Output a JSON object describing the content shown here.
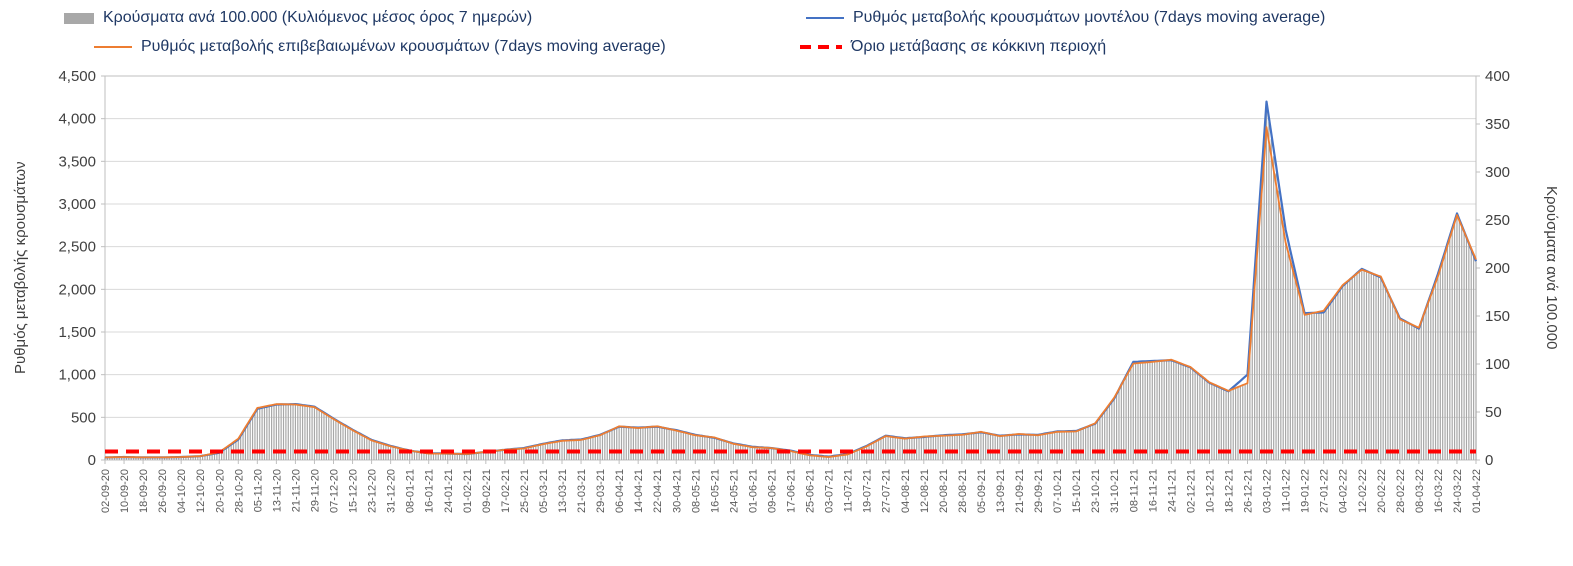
{
  "chart_data": {
    "type": "combo-bar-line",
    "title": "",
    "legend_position": "top",
    "grid": true,
    "x_tick_interval_days": 8,
    "x": [
      "02-09-20",
      "10-09-20",
      "18-09-20",
      "26-09-20",
      "04-10-20",
      "12-10-20",
      "20-10-20",
      "28-10-20",
      "05-11-20",
      "13-11-20",
      "21-11-20",
      "29-11-20",
      "07-12-20",
      "15-12-20",
      "23-12-20",
      "31-12-20",
      "08-01-21",
      "16-01-21",
      "24-01-21",
      "01-02-21",
      "09-02-21",
      "17-02-21",
      "25-02-21",
      "05-03-21",
      "13-03-21",
      "21-03-21",
      "29-03-21",
      "06-04-21",
      "14-04-21",
      "22-04-21",
      "30-04-21",
      "08-05-21",
      "16-05-21",
      "24-05-21",
      "01-06-21",
      "09-06-21",
      "17-06-21",
      "25-06-21",
      "03-07-21",
      "11-07-21",
      "19-07-21",
      "27-07-21",
      "04-08-21",
      "12-08-21",
      "20-08-21",
      "28-08-21",
      "05-09-21",
      "13-09-21",
      "21-09-21",
      "29-09-21",
      "07-10-21",
      "15-10-21",
      "23-10-21",
      "31-10-21",
      "08-11-21",
      "16-11-21",
      "24-11-21",
      "02-12-21",
      "10-12-21",
      "18-12-21",
      "26-12-21",
      "03-01-22",
      "11-01-22",
      "19-01-22",
      "27-01-22",
      "04-02-22",
      "12-02-22",
      "20-02-22",
      "28-02-22",
      "08-03-22",
      "16-03-22",
      "24-03-22",
      "01-04-22"
    ],
    "series": [
      {
        "name": "Κρούσματα ανά 100.000 (Κυλιόμενος μέσος όρος 7 ημερών)",
        "type": "bar",
        "axis": "right",
        "color": "#a8a8a8",
        "values": [
          3,
          3,
          3,
          3,
          3,
          4,
          8,
          22,
          54,
          58,
          58,
          55,
          43,
          31,
          20,
          14,
          10,
          7,
          7,
          6,
          8,
          11,
          12,
          16,
          20,
          21,
          26,
          35,
          33,
          35,
          31,
          26,
          24,
          17,
          13,
          12,
          9,
          5,
          3,
          6,
          14,
          25,
          22,
          24,
          25,
          26,
          29,
          25,
          27,
          26,
          29,
          30,
          38,
          65,
          100,
          102,
          104,
          97,
          81,
          72,
          80,
          370,
          227,
          151,
          156,
          182,
          198,
          191,
          147,
          138,
          191,
          255,
          209
        ]
      },
      {
        "name": "Ρυθμός μεταβολής κρουσμάτων μοντέλου (7days moving average)",
        "type": "line",
        "axis": "left",
        "color": "#4472C4",
        "values": [
          30,
          35,
          30,
          30,
          35,
          45,
          85,
          240,
          600,
          650,
          655,
          625,
          485,
          355,
          235,
          165,
          110,
          80,
          75,
          70,
          95,
          120,
          140,
          190,
          230,
          240,
          295,
          390,
          380,
          390,
          350,
          295,
          260,
          195,
          155,
          140,
          110,
          60,
          40,
          70,
          165,
          285,
          255,
          270,
          290,
          300,
          325,
          285,
          300,
          295,
          335,
          340,
          425,
          720,
          1150,
          1160,
          1170,
          1085,
          905,
          805,
          1000,
          4200,
          2700,
          1720,
          1730,
          2040,
          2240,
          2140,
          1660,
          1540,
          2180,
          2890,
          2330
        ]
      },
      {
        "name": "Ρυθμός μεταβολής επιβεβαιωμένων κρουσμάτων (7days moving average)",
        "type": "line",
        "axis": "left",
        "color": "#ED7D31",
        "values": [
          30,
          35,
          30,
          30,
          35,
          45,
          90,
          250,
          610,
          655,
          650,
          620,
          480,
          350,
          230,
          160,
          110,
          75,
          75,
          70,
          95,
          120,
          135,
          185,
          225,
          235,
          290,
          395,
          375,
          395,
          345,
          290,
          265,
          190,
          150,
          140,
          105,
          55,
          35,
          65,
          160,
          280,
          250,
          275,
          285,
          295,
          330,
          280,
          305,
          290,
          330,
          335,
          430,
          730,
          1130,
          1150,
          1175,
          1090,
          910,
          810,
          900,
          3900,
          2550,
          1700,
          1750,
          2050,
          2230,
          2150,
          1650,
          1550,
          2150,
          2870,
          2350
        ]
      },
      {
        "name": "Όριο μετάβασης σε κόκκινη περιοχή",
        "type": "threshold",
        "axis": "left",
        "color": "#FF0000",
        "value": 100
      }
    ],
    "left_axis": {
      "label": "Ρυθμός μεταβολής κρουσμάτων",
      "min": 0,
      "max": 4500,
      "step": 500,
      "tick_labels": [
        "0",
        "500",
        "1,000",
        "1,500",
        "2,000",
        "2,500",
        "3,000",
        "3,500",
        "4,000",
        "4,500"
      ]
    },
    "right_axis": {
      "label": "Κρούσματα ανά 100.000",
      "min": 0,
      "max": 400,
      "step": 50,
      "tick_labels": [
        "0",
        "50",
        "100",
        "150",
        "200",
        "250",
        "300",
        "350",
        "400"
      ]
    }
  }
}
